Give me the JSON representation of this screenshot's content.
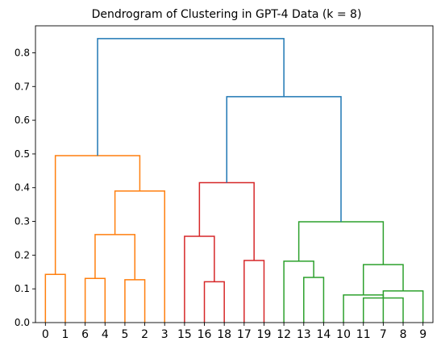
{
  "chart_data": {
    "type": "dendrogram",
    "title": "Dendrogram of Clustering in GPT-4 Data (k = 8)",
    "xlabel": "",
    "ylabel": "",
    "ylim": [
      0,
      0.88
    ],
    "yticks": [
      0.0,
      0.1,
      0.2,
      0.3,
      0.4,
      0.5,
      0.6,
      0.7,
      0.8
    ],
    "ytick_labels": [
      "0.0",
      "0.1",
      "0.2",
      "0.3",
      "0.4",
      "0.5",
      "0.6",
      "0.7",
      "0.8"
    ],
    "leaf_labels": [
      "0",
      "1",
      "6",
      "4",
      "5",
      "2",
      "3",
      "15",
      "16",
      "18",
      "17",
      "19",
      "12",
      "13",
      "14",
      "10",
      "11",
      "7",
      "8",
      "9"
    ],
    "grid": false,
    "colors": {
      "orange_cluster": "#ff7f0e",
      "green_cluster": "#2ca02c",
      "red_cluster": "#d62728",
      "top_links": "#1f77b4"
    },
    "links": [
      {
        "left": "L:0",
        "right": "L:1",
        "height": 0.143,
        "color": "#ff7f0e"
      },
      {
        "left": "L:4",
        "right": "L:5",
        "height": 0.127,
        "color": "#ff7f0e"
      },
      {
        "left": "L:2",
        "right": "L:3",
        "height": 0.131,
        "color": "#ff7f0e"
      },
      {
        "left": "N:1",
        "right": "N:2",
        "height": 0.261,
        "color": "#ff7f0e"
      },
      {
        "left": "L:6",
        "right": "N:3",
        "height": 0.39,
        "color": "#ff7f0e"
      },
      {
        "left": "N:0",
        "right": "N:4",
        "height": 0.495,
        "color": "#ff7f0e"
      },
      {
        "left": "L:16",
        "right": "L:18",
        "height": 0.073,
        "color": "#2ca02c"
      },
      {
        "left": "L:15",
        "right": "N:6",
        "height": 0.082,
        "color": "#2ca02c"
      },
      {
        "left": "L:17",
        "right": "L:19",
        "height": 0.094,
        "color": "#2ca02c"
      },
      {
        "left": "N:7",
        "right": "N:8",
        "height": 0.172,
        "color": "#2ca02c"
      },
      {
        "left": "L:13",
        "right": "L:14",
        "height": 0.134,
        "color": "#2ca02c"
      },
      {
        "left": "L:12",
        "right": "N:10",
        "height": 0.182,
        "color": "#2ca02c"
      },
      {
        "left": "N:9",
        "right": "N:11",
        "height": 0.299,
        "color": "#2ca02c"
      },
      {
        "left": "L:10",
        "right": "L:11",
        "height": 0.184,
        "color": "#d62728"
      },
      {
        "left": "L:8",
        "right": "L:9",
        "height": 0.121,
        "color": "#d62728"
      },
      {
        "left": "L:7",
        "right": "N:14",
        "height": 0.256,
        "color": "#d62728"
      },
      {
        "left": "N:13",
        "right": "N:15",
        "height": 0.415,
        "color": "#d62728"
      },
      {
        "left": "N:12",
        "right": "N:16",
        "height": 0.67,
        "color": "#1f77b4"
      },
      {
        "left": "N:5",
        "right": "N:17",
        "height": 0.842,
        "color": "#1f77b4"
      }
    ]
  }
}
